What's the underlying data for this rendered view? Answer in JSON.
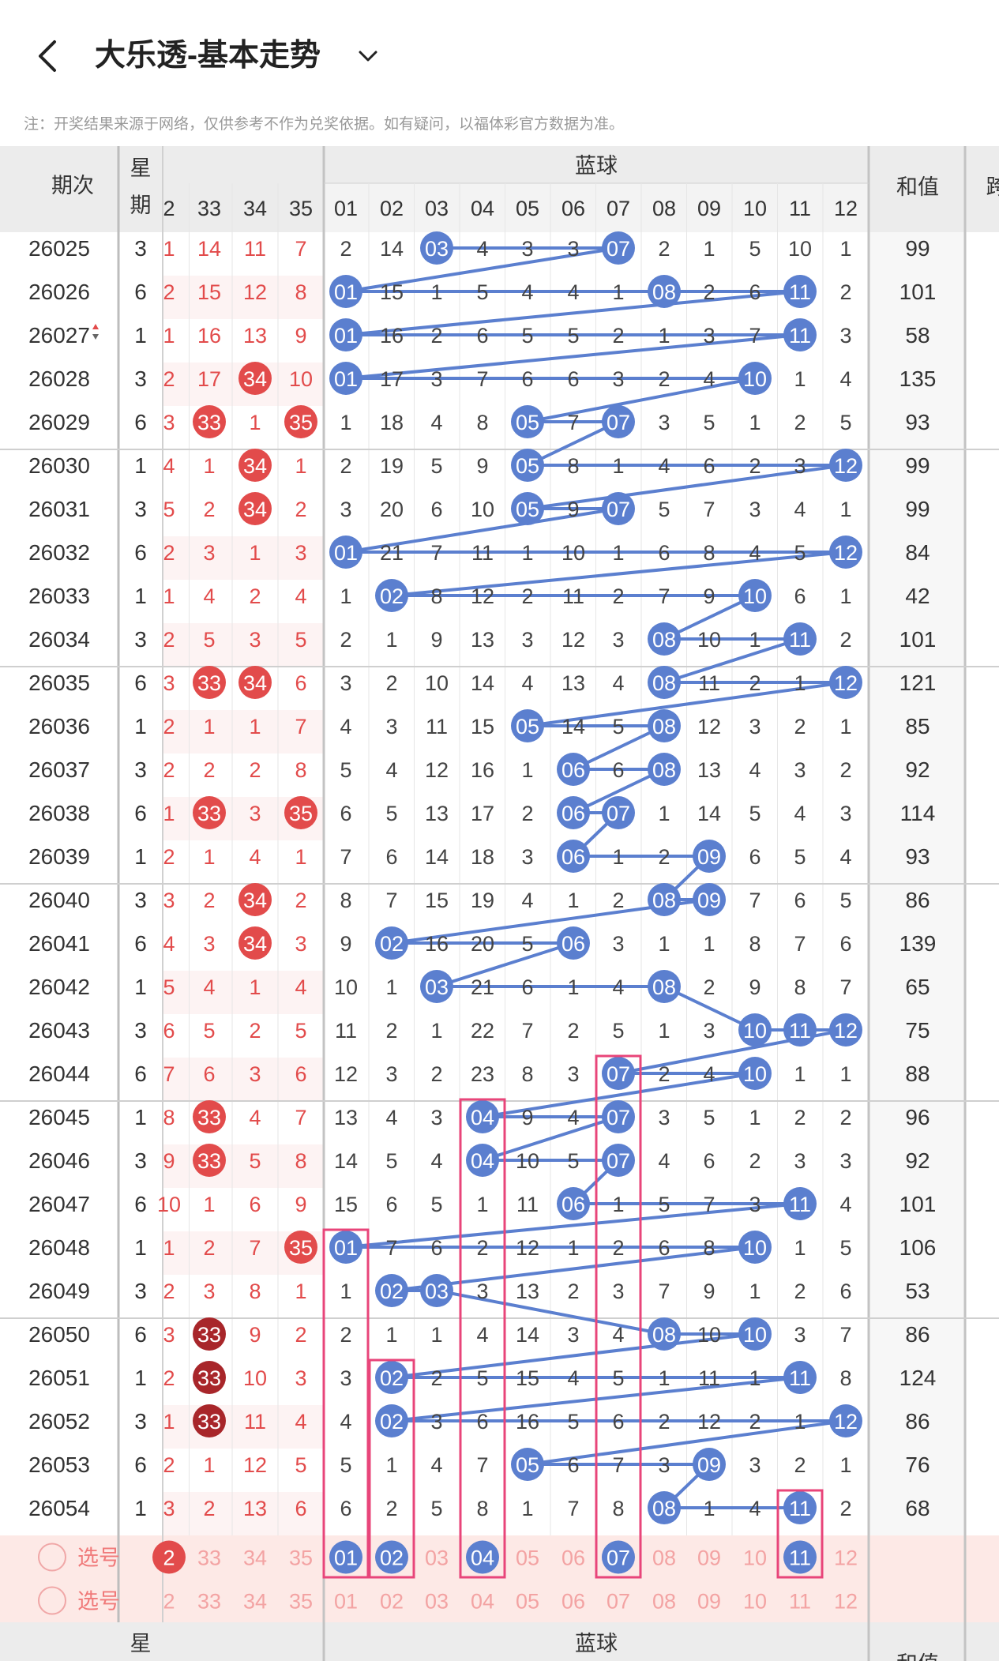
{
  "header": {
    "title": "大乐透-基本走势",
    "back_icon": "chevron-left-icon",
    "dropdown_icon": "chevron-down-icon"
  },
  "note": "注：开奖结果来源于网络，仅供参考不作为兑奖依据。如有疑问，以福体彩官方数据为准。",
  "table": {
    "period_header": "期次",
    "weekday_header_top": "星",
    "weekday_header_bottom": "期",
    "blue_header": "蓝球",
    "sum_header": "和值",
    "cut_header": "跨",
    "red_partial_col": "2",
    "red_cols": [
      "33",
      "34",
      "35"
    ],
    "blue_cols": [
      "01",
      "02",
      "03",
      "04",
      "05",
      "06",
      "07",
      "08",
      "09",
      "10",
      "11",
      "12"
    ],
    "rows": [
      {
        "period": "26025",
        "week": "3",
        "red": [
          "1",
          "14",
          "11",
          "7"
        ],
        "blue": [
          "2",
          "14",
          "03",
          "4",
          "3",
          "3",
          "07",
          "2",
          "1",
          "5",
          "10",
          "1"
        ],
        "sum": "99"
      },
      {
        "period": "26026",
        "week": "6",
        "red": [
          "2",
          "15",
          "12",
          "8"
        ],
        "blue": [
          "01",
          "15",
          "1",
          "5",
          "4",
          "4",
          "1",
          "08",
          "2",
          "6",
          "11",
          "2"
        ],
        "sum": "101"
      },
      {
        "period": "26027",
        "week": "1",
        "red": [
          "1",
          "16",
          "13",
          "9"
        ],
        "blue": [
          "01",
          "16",
          "2",
          "6",
          "5",
          "5",
          "2",
          "1",
          "3",
          "7",
          "11",
          "3"
        ],
        "sum": "58"
      },
      {
        "period": "26028",
        "week": "3",
        "red": [
          "2",
          "17",
          "34",
          "10"
        ],
        "blue": [
          "01",
          "17",
          "3",
          "7",
          "6",
          "6",
          "3",
          "2",
          "4",
          "10",
          "1",
          "4"
        ],
        "sum": "135"
      },
      {
        "period": "26029",
        "week": "6",
        "red": [
          "3",
          "33",
          "1",
          "35"
        ],
        "blue": [
          "1",
          "18",
          "4",
          "8",
          "05",
          "7",
          "07",
          "3",
          "5",
          "1",
          "2",
          "5"
        ],
        "sum": "93"
      },
      {
        "period": "26030",
        "week": "1",
        "red": [
          "4",
          "1",
          "34",
          "1"
        ],
        "blue": [
          "2",
          "19",
          "5",
          "9",
          "05",
          "8",
          "1",
          "4",
          "6",
          "2",
          "3",
          "12"
        ],
        "sum": "99"
      },
      {
        "period": "26031",
        "week": "3",
        "red": [
          "5",
          "2",
          "34",
          "2"
        ],
        "blue": [
          "3",
          "20",
          "6",
          "10",
          "05",
          "9",
          "07",
          "5",
          "7",
          "3",
          "4",
          "1"
        ],
        "sum": "99"
      },
      {
        "period": "26032",
        "week": "6",
        "red": [
          "2",
          "3",
          "1",
          "3"
        ],
        "blue": [
          "01",
          "21",
          "7",
          "11",
          "1",
          "10",
          "1",
          "6",
          "8",
          "4",
          "5",
          "12"
        ],
        "sum": "84"
      },
      {
        "period": "26033",
        "week": "1",
        "red": [
          "1",
          "4",
          "2",
          "4"
        ],
        "blue": [
          "1",
          "02",
          "8",
          "12",
          "2",
          "11",
          "2",
          "7",
          "9",
          "10",
          "6",
          "1"
        ],
        "sum": "42"
      },
      {
        "period": "26034",
        "week": "3",
        "red": [
          "2",
          "5",
          "3",
          "5"
        ],
        "blue": [
          "2",
          "1",
          "9",
          "13",
          "3",
          "12",
          "3",
          "08",
          "10",
          "1",
          "11",
          "2"
        ],
        "sum": "101"
      },
      {
        "period": "26035",
        "week": "6",
        "red": [
          "3",
          "33",
          "34",
          "6"
        ],
        "blue": [
          "3",
          "2",
          "10",
          "14",
          "4",
          "13",
          "4",
          "08",
          "11",
          "2",
          "1",
          "12"
        ],
        "sum": "121"
      },
      {
        "period": "26036",
        "week": "1",
        "red": [
          "2",
          "1",
          "1",
          "7"
        ],
        "blue": [
          "4",
          "3",
          "11",
          "15",
          "05",
          "14",
          "5",
          "08",
          "12",
          "3",
          "2",
          "1"
        ],
        "sum": "85"
      },
      {
        "period": "26037",
        "week": "3",
        "red": [
          "2",
          "2",
          "2",
          "8"
        ],
        "blue": [
          "5",
          "4",
          "12",
          "16",
          "1",
          "06",
          "6",
          "08",
          "13",
          "4",
          "3",
          "2"
        ],
        "sum": "92"
      },
      {
        "period": "26038",
        "week": "6",
        "red": [
          "1",
          "33",
          "3",
          "35"
        ],
        "blue": [
          "6",
          "5",
          "13",
          "17",
          "2",
          "06",
          "07",
          "1",
          "14",
          "5",
          "4",
          "3"
        ],
        "sum": "114"
      },
      {
        "period": "26039",
        "week": "1",
        "red": [
          "2",
          "1",
          "4",
          "1"
        ],
        "blue": [
          "7",
          "6",
          "14",
          "18",
          "3",
          "06",
          "1",
          "2",
          "09",
          "6",
          "5",
          "4"
        ],
        "sum": "93"
      },
      {
        "period": "26040",
        "week": "3",
        "red": [
          "3",
          "2",
          "34",
          "2"
        ],
        "blue": [
          "8",
          "7",
          "15",
          "19",
          "4",
          "1",
          "2",
          "08",
          "09",
          "7",
          "6",
          "5"
        ],
        "sum": "86"
      },
      {
        "period": "26041",
        "week": "6",
        "red": [
          "4",
          "3",
          "34",
          "3"
        ],
        "blue": [
          "9",
          "02",
          "16",
          "20",
          "5",
          "06",
          "3",
          "1",
          "1",
          "8",
          "7",
          "6"
        ],
        "sum": "139"
      },
      {
        "period": "26042",
        "week": "1",
        "red": [
          "5",
          "4",
          "1",
          "4"
        ],
        "blue": [
          "10",
          "1",
          "03",
          "21",
          "6",
          "1",
          "4",
          "08",
          "2",
          "9",
          "8",
          "7"
        ],
        "sum": "65"
      },
      {
        "period": "26043",
        "week": "3",
        "red": [
          "6",
          "5",
          "2",
          "5"
        ],
        "blue": [
          "11",
          "2",
          "1",
          "22",
          "7",
          "2",
          "5",
          "1",
          "3",
          "10",
          "11",
          "12"
        ],
        "sum": "75"
      },
      {
        "period": "26044",
        "week": "6",
        "red": [
          "7",
          "6",
          "3",
          "6"
        ],
        "blue": [
          "12",
          "3",
          "2",
          "23",
          "8",
          "3",
          "07",
          "2",
          "4",
          "10",
          "1",
          "1"
        ],
        "sum": "88"
      },
      {
        "period": "26045",
        "week": "1",
        "red": [
          "8",
          "33",
          "4",
          "7"
        ],
        "blue": [
          "13",
          "4",
          "3",
          "04",
          "9",
          "4",
          "07",
          "3",
          "5",
          "1",
          "2",
          "2"
        ],
        "sum": "96"
      },
      {
        "period": "26046",
        "week": "3",
        "red": [
          "9",
          "33",
          "5",
          "8"
        ],
        "blue": [
          "14",
          "5",
          "4",
          "04",
          "10",
          "5",
          "07",
          "4",
          "6",
          "2",
          "3",
          "3"
        ],
        "sum": "92"
      },
      {
        "period": "26047",
        "week": "6",
        "red": [
          "10",
          "1",
          "6",
          "9"
        ],
        "blue": [
          "15",
          "6",
          "5",
          "1",
          "11",
          "06",
          "1",
          "5",
          "7",
          "3",
          "11",
          "4"
        ],
        "sum": "101"
      },
      {
        "period": "26048",
        "week": "1",
        "red": [
          "1",
          "2",
          "7",
          "35"
        ],
        "blue": [
          "01",
          "7",
          "6",
          "2",
          "12",
          "1",
          "2",
          "6",
          "8",
          "10",
          "1",
          "5"
        ],
        "sum": "106"
      },
      {
        "period": "26049",
        "week": "3",
        "red": [
          "2",
          "3",
          "8",
          "1"
        ],
        "blue": [
          "1",
          "02",
          "03",
          "3",
          "13",
          "2",
          "3",
          "7",
          "9",
          "1",
          "2",
          "6"
        ],
        "sum": "53"
      },
      {
        "period": "26050",
        "week": "6",
        "red": [
          "3",
          "33",
          "9",
          "2"
        ],
        "blue": [
          "2",
          "1",
          "1",
          "4",
          "14",
          "3",
          "4",
          "08",
          "10",
          "10",
          "3",
          "7"
        ],
        "sum": "86"
      },
      {
        "period": "26051",
        "week": "1",
        "red": [
          "2",
          "33",
          "10",
          "3"
        ],
        "blue": [
          "3",
          "02",
          "2",
          "5",
          "15",
          "4",
          "5",
          "1",
          "11",
          "1",
          "11",
          "8"
        ],
        "sum": "124"
      },
      {
        "period": "26052",
        "week": "3",
        "red": [
          "1",
          "33",
          "11",
          "4"
        ],
        "blue": [
          "4",
          "02",
          "3",
          "6",
          "16",
          "5",
          "6",
          "2",
          "12",
          "2",
          "1",
          "12"
        ],
        "sum": "86"
      },
      {
        "period": "26053",
        "week": "6",
        "red": [
          "2",
          "1",
          "12",
          "5"
        ],
        "blue": [
          "5",
          "1",
          "4",
          "7",
          "05",
          "6",
          "7",
          "3",
          "09",
          "3",
          "2",
          "1"
        ],
        "sum": "76"
      },
      {
        "period": "26054",
        "week": "1",
        "red": [
          "3",
          "2",
          "13",
          "6"
        ],
        "blue": [
          "6",
          "2",
          "5",
          "8",
          "1",
          "7",
          "8",
          "08",
          "1",
          "4",
          "11",
          "2"
        ],
        "sum": "68"
      }
    ],
    "select_label": "选号",
    "select_rows": [
      {
        "red": [
          "2",
          "33",
          "34",
          "35"
        ],
        "blue": [
          "01",
          "02",
          "03",
          "04",
          "05",
          "06",
          "07",
          "08",
          "09",
          "10",
          "11",
          "12"
        ],
        "picked": [
          "01",
          "02",
          "04",
          "07",
          "11"
        ]
      },
      {
        "red": [
          "2",
          "33",
          "34",
          "35"
        ],
        "blue": [
          "01",
          "02",
          "03",
          "04",
          "05",
          "06",
          "07",
          "08",
          "09",
          "10",
          "11",
          "12"
        ],
        "picked": []
      }
    ],
    "footer": {
      "period": "-",
      "week": "星",
      "blue_header": "蓝球",
      "sum_header": "和值"
    }
  },
  "colors": {
    "blue_ball": "#5b7fcf",
    "trend_line": "#5b7fcf",
    "red_ball": "#e24b4b",
    "dark_red_ball": "#a8262a",
    "miss_red": "#e24b4b",
    "highlight_box": "#e8457a",
    "header_bg": "#ececec",
    "select_bg": "#fde9e6"
  }
}
